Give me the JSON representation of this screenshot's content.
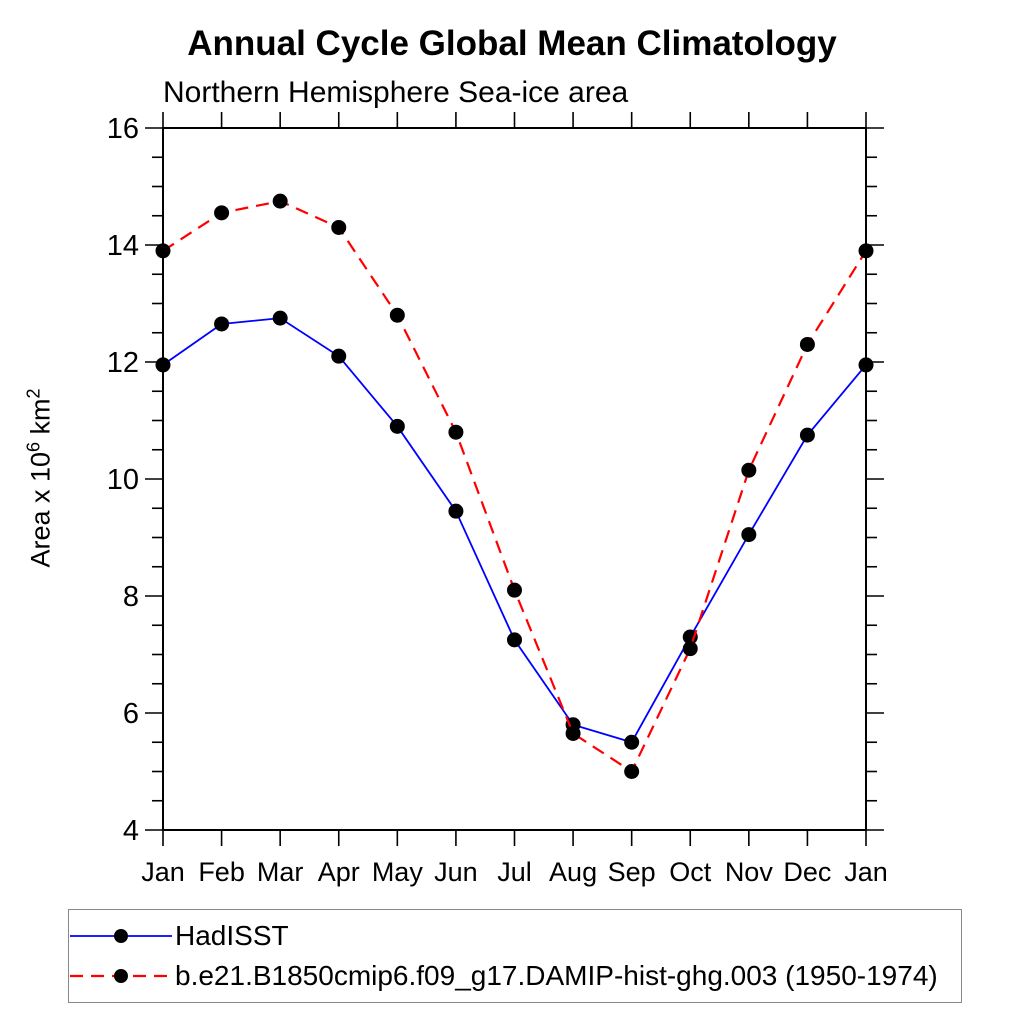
{
  "title": "Annual Cycle Global Mean Climatology",
  "subtitle": "Northern Hemisphere Sea-ice area",
  "y_axis": {
    "prefix": "Area x 10",
    "sup1": "6",
    "mid": " km",
    "sup2": "2"
  },
  "colors": {
    "axis": "#000000",
    "marker": "#000000",
    "hadisst_line": "#0000ff",
    "model_line": "#ff0000",
    "legend_border": "#888888"
  },
  "chart_data": {
    "type": "line",
    "title": "Annual Cycle Global Mean Climatology",
    "subtitle": "Northern Hemisphere Sea-ice area",
    "ylabel": "Area x 10^6 km^2",
    "xlabel": "",
    "x_categories": [
      "Jan",
      "Feb",
      "Mar",
      "Apr",
      "May",
      "Jun",
      "Jul",
      "Aug",
      "Sep",
      "Oct",
      "Nov",
      "Dec",
      "Jan"
    ],
    "ylim": [
      4,
      16
    ],
    "y_major_ticks": [
      4,
      6,
      8,
      10,
      12,
      14,
      16
    ],
    "y_minor_step": 0.5,
    "grid": false,
    "legend_position": "bottom-left-box",
    "series": [
      {
        "name": "HadISST",
        "line_color": "#0000ff",
        "line_style": "solid",
        "marker": "filled-circle",
        "marker_color": "#000000",
        "values": [
          11.95,
          12.65,
          12.75,
          12.1,
          10.9,
          9.45,
          7.25,
          5.8,
          5.5,
          7.3,
          9.05,
          10.75,
          11.95
        ]
      },
      {
        "name": "b.e21.B1850cmip6.f09_g17.DAMIP-hist-ghg.003 (1950-1974)",
        "line_color": "#ff0000",
        "line_style": "dashed",
        "marker": "filled-circle",
        "marker_color": "#000000",
        "values": [
          13.9,
          14.55,
          14.75,
          14.3,
          12.8,
          10.8,
          8.1,
          5.65,
          5.0,
          7.1,
          10.15,
          12.3,
          13.9
        ]
      }
    ]
  }
}
